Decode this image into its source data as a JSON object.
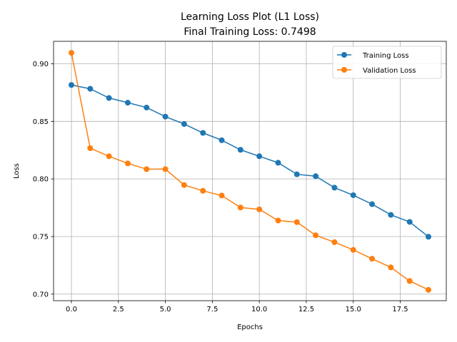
{
  "chart_data": {
    "type": "line",
    "title": "Learning Loss Plot (L1 Loss)",
    "subtitle": "Final Training Loss: 0.7498",
    "xlabel": "Epochs",
    "ylabel": "Loss",
    "xlim": [
      -0.95,
      19.95
    ],
    "ylim": [
      0.6943,
      0.9195
    ],
    "xticks": [
      0.0,
      2.5,
      5.0,
      7.5,
      10.0,
      12.5,
      15.0,
      17.5
    ],
    "xtick_labels": [
      "0.0",
      "2.5",
      "5.0",
      "7.5",
      "10.0",
      "12.5",
      "15.0",
      "17.5"
    ],
    "yticks": [
      0.7,
      0.75,
      0.8,
      0.85,
      0.9
    ],
    "ytick_labels": [
      "0.70",
      "0.75",
      "0.80",
      "0.85",
      "0.90"
    ],
    "grid": true,
    "legend_position": "top-right",
    "x": [
      0,
      1,
      2,
      3,
      4,
      5,
      6,
      7,
      8,
      9,
      10,
      11,
      12,
      13,
      14,
      15,
      16,
      17,
      18,
      19
    ],
    "series": [
      {
        "name": "Training Loss",
        "color": "#1f77b4",
        "values": [
          0.8816,
          0.8783,
          0.8703,
          0.8662,
          0.862,
          0.8541,
          0.8477,
          0.84,
          0.8336,
          0.8253,
          0.8197,
          0.8141,
          0.804,
          0.8024,
          0.7924,
          0.7859,
          0.7781,
          0.7688,
          0.7627,
          0.7498
        ]
      },
      {
        "name": "Validation Loss",
        "color": "#ff7f0e",
        "values": [
          0.9095,
          0.8267,
          0.8197,
          0.8135,
          0.8085,
          0.8085,
          0.7947,
          0.7897,
          0.7856,
          0.7752,
          0.7736,
          0.7639,
          0.7625,
          0.7511,
          0.7451,
          0.7384,
          0.7307,
          0.7232,
          0.7114,
          0.7037
        ]
      }
    ]
  }
}
